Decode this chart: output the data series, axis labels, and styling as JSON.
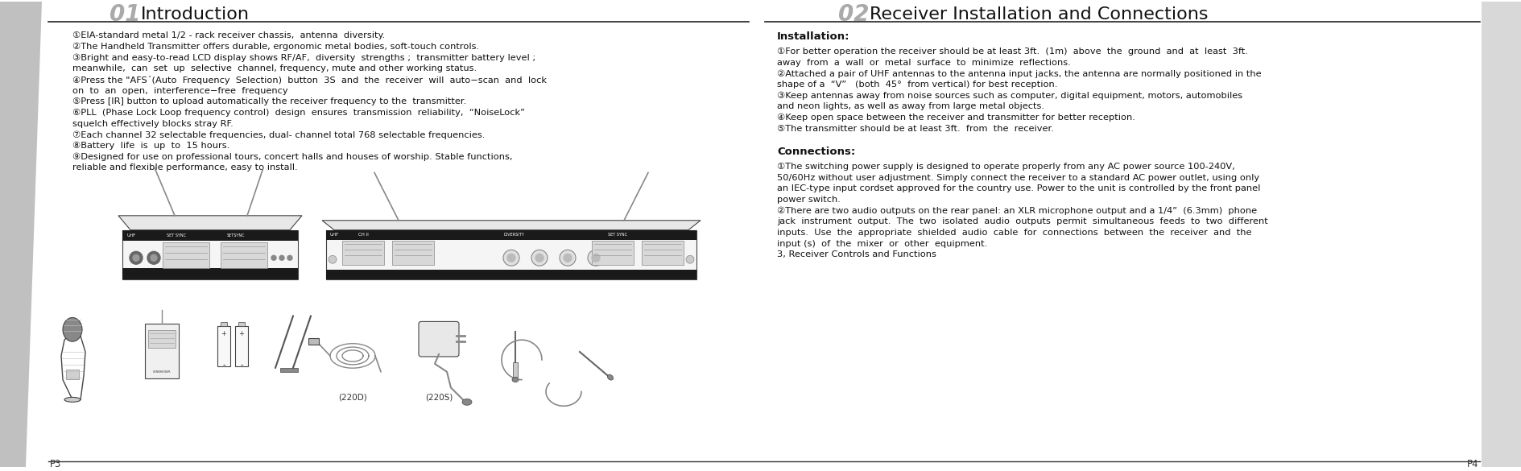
{
  "bg_color": "#ffffff",
  "sidebar_color": "#c8c8c8",
  "header_line_color": "#222222",
  "left_title_num": "01",
  "left_title": "Introduction",
  "right_title_num": "02",
  "right_title": "Receiver Installation and Connections",
  "title_num_color": "#aaaaaa",
  "title_text_color": "#111111",
  "page_left": "P3",
  "page_right": "P4",
  "body_color": "#111111",
  "body_fs": 8.2,
  "title_fs": 16,
  "title_num_fs": 20,
  "left_body": [
    "①EIA-standard metal 1/2 - rack receiver chassis,  antenna  diversity.",
    "②The Handheld Transmitter offers durable, ergonomic metal bodies, soft-touch controls.",
    "③Bright and easy-to-read LCD display shows RF/AF,  diversity  strengths ;  transmitter battery level ;\nmeanwhile,  can  set  up  selective  channel, frequency, mute and other working status.",
    "④Press the \"AFS´(Auto  Frequency  Selection)  button  3S  and  the  receiver  will  auto−scan  and  lock\non  to  an  open,  interference−free  frequency",
    "⑤Press [IR] button to upload automatically the receiver frequency to the  transmitter.",
    "⑥PLL  (Phase Lock Loop frequency control)  design  ensures  transmission  reliability,  “NoiseLock”\nsquelch effectively blocks stray RF.",
    "⑦Each channel 32 selectable frequencies, dual- channel total 768 selectable frequencies.",
    "⑧Battery  life  is  up  to  15 hours.",
    "⑨Designed for use on professional tours, concert halls and houses of worship. Stable functions,\nreliable and flexible performance, easy to install."
  ],
  "right_install_title": "Installation:",
  "right_install": [
    "①For better operation the receiver should be at least 3ft.  (1m)  above  the  ground  and  at  least  3ft.\naway  from  a  wall  or  metal  surface  to  minimize  reflections.",
    "②Attached a pair of UHF antennas to the antenna input jacks, the antenna are normally positioned in the\nshape of a  “V”   (both  45°  from vertical) for best reception.",
    "③Keep antennas away from noise sources such as computer, digital equipment, motors, automobiles\nand neon lights, as well as away from large metal objects.",
    "④Keep open space between the receiver and transmitter for better reception.",
    "⑤The transmitter should be at least 3ft.  from  the  receiver."
  ],
  "right_conn_title": "Connections:",
  "right_conn": [
    "①The switching power supply is designed to operate properly from any AC power source 100-240V,\n50/60Hz without user adjustment. Simply connect the receiver to a standard AC power outlet, using only\nan IEC-type input cordset approved for the country use. Power to the unit is controlled by the front panel\npower switch.",
    "②There are two audio outputs on the rear panel: an XLR microphone output and a 1/4”  (6.3mm)  phone\njack  instrument  output.  The  two  isolated  audio  outputs  permit  simultaneous  feeds  to  two  different\ninputs.  Use  the  appropriate  shielded  audio  cable  for  connections  between  the  receiver  and  the\ninput (s)  of  the  mixer  or  other  equipment.",
    "3, Receiver Controls and Functions"
  ]
}
